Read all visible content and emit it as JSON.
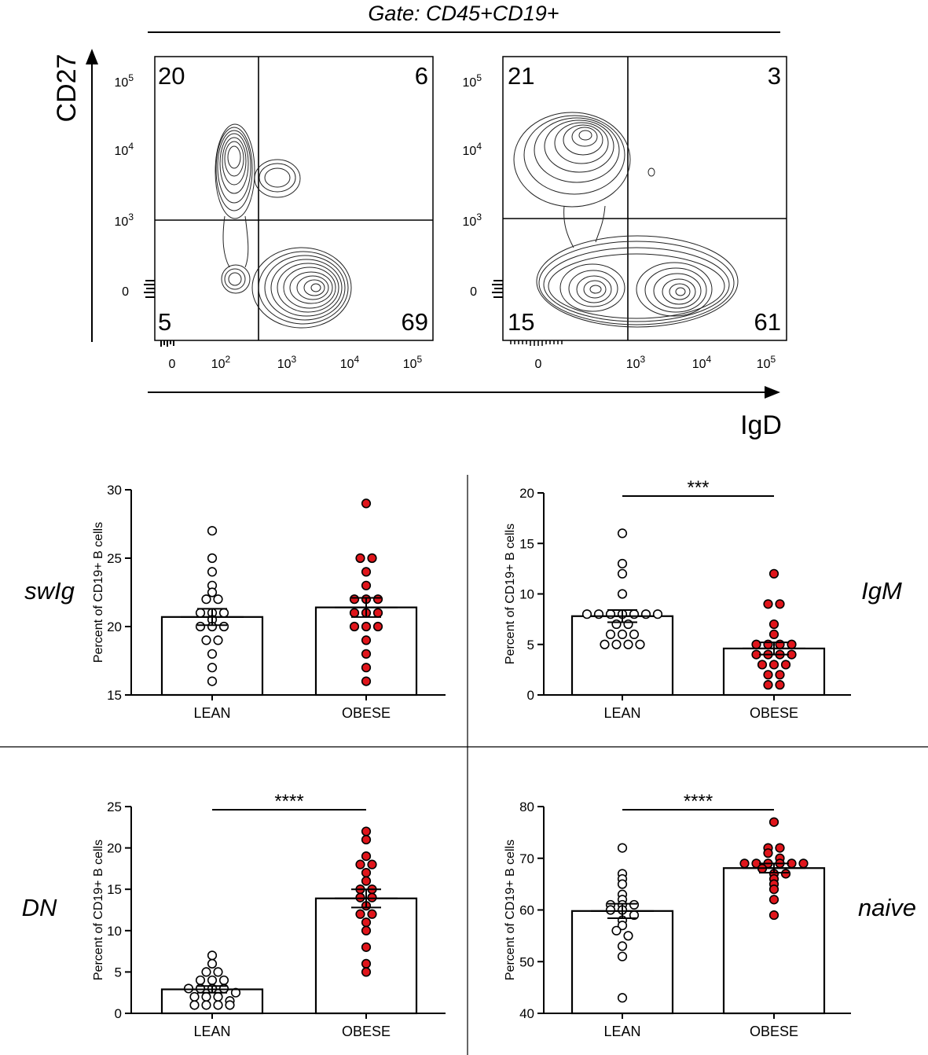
{
  "colors": {
    "ink": "#000000",
    "lean_fill": "#ffffff",
    "obese_fill": "#e0151b",
    "bar_fill": "#ffffff"
  },
  "gate_label": "Gate: CD45+CD19+",
  "flow_axes": {
    "y_label": "CD27",
    "x_label": "IgD"
  },
  "flow_plots": [
    {
      "quadrants": {
        "top_left": "20",
        "top_right": "6",
        "bottom_left": "5",
        "bottom_right": "69"
      },
      "y_ticks": [
        {
          "base": "10",
          "exp": "5"
        },
        {
          "base": "10",
          "exp": "4"
        },
        {
          "base": "10",
          "exp": "3"
        },
        {
          "base": "0",
          "exp": ""
        }
      ],
      "x_ticks": [
        {
          "base": "0",
          "exp": ""
        },
        {
          "base": "10",
          "exp": "2"
        },
        {
          "base": "10",
          "exp": "3"
        },
        {
          "base": "10",
          "exp": "4"
        },
        {
          "base": "10",
          "exp": "5"
        }
      ]
    },
    {
      "quadrants": {
        "top_left": "21",
        "top_right": "3",
        "bottom_left": "15",
        "bottom_right": "61"
      },
      "y_ticks": [
        {
          "base": "10",
          "exp": "5"
        },
        {
          "base": "10",
          "exp": "4"
        },
        {
          "base": "10",
          "exp": "3"
        },
        {
          "base": "0",
          "exp": ""
        }
      ],
      "x_ticks": [
        {
          "base": "0",
          "exp": ""
        },
        {
          "base": "10",
          "exp": "3"
        },
        {
          "base": "10",
          "exp": "4"
        },
        {
          "base": "10",
          "exp": "5"
        }
      ]
    }
  ],
  "chart_data": [
    {
      "type": "bar",
      "title": "swIg",
      "ylabel": "Percent of CD19+ B cells",
      "categories": [
        "LEAN",
        "OBESE"
      ],
      "ylim": [
        15,
        30
      ],
      "yticks": [
        15,
        20,
        25,
        30
      ],
      "means": [
        20.7,
        21.4
      ],
      "sem": [
        0.6,
        0.7
      ],
      "significance": "",
      "points": [
        [
          27,
          25,
          24,
          23,
          22.5,
          22,
          22,
          21,
          21,
          21,
          20.5,
          20,
          20,
          20,
          19,
          19,
          18,
          17,
          16
        ],
        [
          29,
          25,
          25,
          24,
          23,
          22,
          22,
          22,
          21,
          21,
          21,
          20,
          20,
          20,
          19,
          18,
          17,
          16
        ]
      ]
    },
    {
      "type": "bar",
      "title": "IgM",
      "ylabel": "Percent of CD19+ B cells",
      "categories": [
        "LEAN",
        "OBESE"
      ],
      "ylim": [
        0,
        20
      ],
      "yticks": [
        0,
        5,
        10,
        15,
        20
      ],
      "means": [
        7.8,
        4.6
      ],
      "sem": [
        0.6,
        0.6
      ],
      "significance": "***",
      "points": [
        [
          16,
          13,
          12,
          10,
          8,
          8,
          8,
          8,
          8,
          8,
          8,
          7,
          7,
          6,
          6,
          6,
          5,
          5,
          5,
          5
        ],
        [
          12,
          9,
          9,
          7,
          6,
          5,
          5,
          5,
          5,
          4,
          4,
          4,
          4,
          3,
          3,
          3,
          2,
          2,
          1,
          1
        ]
      ]
    },
    {
      "type": "bar",
      "title": "DN",
      "ylabel": "Percent of CD19+ B cells",
      "categories": [
        "LEAN",
        "OBESE"
      ],
      "ylim": [
        0,
        25
      ],
      "yticks": [
        0,
        5,
        10,
        15,
        20,
        25
      ],
      "means": [
        2.9,
        13.9
      ],
      "sem": [
        0.4,
        1.1
      ],
      "significance": "****",
      "points": [
        [
          7,
          6,
          5,
          5,
          4,
          4,
          4,
          3,
          3,
          3,
          3,
          2.5,
          2,
          2,
          2,
          1.5,
          1,
          1,
          1,
          1
        ],
        [
          22,
          21,
          19,
          18,
          18,
          17,
          16,
          15,
          15,
          14,
          14,
          13,
          12,
          12,
          11,
          10,
          8,
          6,
          5
        ]
      ]
    },
    {
      "type": "bar",
      "title": "naive",
      "ylabel": "Percent of CD19+ B cells",
      "categories": [
        "LEAN",
        "OBESE"
      ],
      "ylim": [
        40,
        80
      ],
      "yticks": [
        40,
        50,
        60,
        70,
        80
      ],
      "means": [
        59.8,
        68.1
      ],
      "sem": [
        1.4,
        0.9
      ],
      "significance": "****",
      "points": [
        [
          72,
          67,
          66,
          65,
          63,
          62,
          61,
          61,
          61,
          60,
          60,
          59,
          58,
          57,
          56,
          55,
          53,
          51,
          43
        ],
        [
          77,
          72,
          72,
          71,
          70,
          69,
          69,
          69,
          69,
          69,
          69,
          68,
          67,
          67,
          66,
          65,
          64,
          62,
          59
        ]
      ]
    }
  ]
}
